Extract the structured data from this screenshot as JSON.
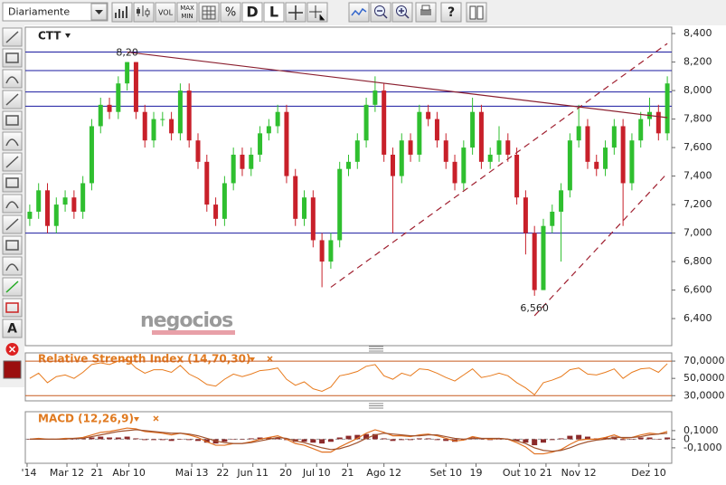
{
  "toolbar": {
    "period": "Diariamente",
    "buttons": [
      "VOL",
      "MAX",
      "MIN",
      "%",
      "D",
      "L",
      "?"
    ],
    "side_label": "A"
  },
  "chart_data": [
    {
      "type": "candlestick",
      "title": "CTT",
      "watermark": "negocios",
      "xlim": [
        -0.5,
        72.5
      ],
      "open": [
        7.1,
        7.15,
        7.3,
        7.05,
        7.2,
        7.25,
        7.15,
        7.35,
        7.75,
        7.9,
        7.85,
        8.05,
        8.2,
        7.85,
        7.65,
        7.8,
        7.8,
        7.7,
        8.0,
        7.65,
        7.5,
        7.2,
        7.1,
        7.35,
        7.55,
        7.45,
        7.55,
        7.7,
        7.75,
        7.85,
        7.4,
        7.1,
        7.25,
        6.95,
        6.8,
        6.95,
        7.45,
        7.5,
        7.65,
        7.9,
        8.0,
        7.55,
        7.4,
        7.65,
        7.55,
        7.85,
        7.8,
        7.65,
        7.5,
        7.35,
        7.6,
        7.85,
        7.5,
        7.55,
        7.65,
        7.55,
        7.25,
        7.0,
        6.6,
        7.05,
        7.15,
        7.3,
        7.65,
        7.75,
        7.5,
        7.45,
        7.6,
        7.75,
        7.35,
        7.65,
        7.8,
        7.85,
        7.7
      ],
      "high": [
        7.2,
        7.35,
        7.35,
        7.25,
        7.3,
        7.3,
        7.4,
        7.8,
        7.95,
        7.95,
        8.1,
        8.2,
        8.2,
        7.9,
        7.85,
        7.85,
        7.85,
        8.05,
        8.05,
        7.7,
        7.55,
        7.25,
        7.4,
        7.6,
        7.6,
        7.6,
        7.75,
        7.8,
        7.9,
        7.9,
        7.45,
        7.3,
        7.3,
        7.0,
        7.0,
        7.5,
        7.55,
        7.7,
        7.95,
        8.1,
        8.05,
        7.6,
        7.7,
        7.7,
        7.9,
        7.9,
        7.85,
        7.7,
        7.55,
        7.65,
        7.95,
        7.9,
        7.6,
        7.75,
        7.7,
        7.6,
        7.3,
        7.05,
        7.1,
        7.2,
        7.35,
        7.7,
        7.9,
        7.8,
        7.55,
        7.65,
        7.8,
        7.8,
        7.7,
        7.85,
        7.95,
        7.9,
        8.1
      ],
      "low": [
        7.05,
        7.1,
        7.0,
        7.0,
        7.15,
        7.1,
        7.1,
        7.3,
        7.7,
        7.8,
        7.8,
        8.0,
        7.8,
        7.6,
        7.6,
        7.75,
        7.65,
        7.65,
        7.6,
        7.45,
        7.15,
        7.05,
        7.05,
        7.3,
        7.4,
        7.4,
        7.5,
        7.65,
        7.7,
        7.35,
        7.05,
        7.05,
        6.9,
        6.62,
        6.75,
        6.9,
        7.4,
        7.45,
        7.6,
        7.85,
        7.5,
        7.0,
        7.35,
        7.5,
        7.5,
        7.75,
        7.6,
        7.45,
        7.3,
        7.3,
        7.55,
        7.45,
        7.45,
        7.5,
        7.5,
        7.2,
        6.85,
        6.56,
        6.6,
        7.0,
        6.8,
        7.25,
        7.6,
        7.45,
        7.4,
        7.4,
        7.55,
        7.05,
        7.3,
        7.6,
        7.75,
        7.65,
        7.65
      ],
      "close": [
        7.15,
        7.3,
        7.05,
        7.2,
        7.25,
        7.15,
        7.35,
        7.75,
        7.9,
        7.85,
        8.05,
        8.2,
        7.85,
        7.65,
        7.8,
        7.8,
        7.7,
        8.0,
        7.65,
        7.5,
        7.2,
        7.1,
        7.35,
        7.55,
        7.45,
        7.55,
        7.7,
        7.75,
        7.85,
        7.4,
        7.1,
        7.25,
        6.95,
        6.8,
        6.95,
        7.45,
        7.5,
        7.65,
        7.9,
        8.0,
        7.55,
        7.4,
        7.65,
        7.55,
        7.85,
        7.8,
        7.65,
        7.5,
        7.35,
        7.6,
        7.85,
        7.5,
        7.55,
        7.65,
        7.55,
        7.25,
        7.0,
        6.6,
        7.05,
        7.15,
        7.3,
        7.65,
        7.75,
        7.5,
        7.45,
        7.6,
        7.75,
        7.35,
        7.65,
        7.8,
        7.85,
        7.7,
        8.05
      ],
      "up_color": "#2fbf2f",
      "down_color": "#c8202a",
      "ylim": [
        6.21,
        8.445
      ],
      "yticks": [
        {
          "value": 6.4,
          "label": "6,400"
        },
        {
          "value": 6.6,
          "label": "6,600"
        },
        {
          "value": 6.8,
          "label": "6,800"
        },
        {
          "value": 7.0,
          "label": "7,000"
        },
        {
          "value": 7.2,
          "label": "7,200"
        },
        {
          "value": 7.4,
          "label": "7,400"
        },
        {
          "value": 7.6,
          "label": "7,600"
        },
        {
          "value": 7.8,
          "label": "7,800"
        },
        {
          "value": 8.0,
          "label": "8,000"
        },
        {
          "value": 8.2,
          "label": "8,200"
        },
        {
          "value": 8.4,
          "label": "8,400"
        }
      ],
      "hlines": {
        "values": [
          8.27,
          8.14,
          7.99,
          7.89,
          7.0
        ],
        "color": "#1a1aa0"
      },
      "trendlines": [
        {
          "points": [
            [
              11,
              8.27
            ],
            [
              72,
              7.81
            ]
          ],
          "color": "#8b2030",
          "dashed": false
        },
        {
          "points": [
            [
              34,
              6.62
            ],
            [
              72,
              8.33
            ]
          ],
          "color": "#a02030",
          "dashed": true
        },
        {
          "points": [
            [
              57,
              6.42
            ],
            [
              72,
              7.42
            ]
          ],
          "color": "#a02030",
          "dashed": true
        }
      ],
      "annotations": [
        {
          "index": 11,
          "value": 8.2,
          "label": "8,20"
        },
        {
          "index": 57,
          "value": 6.56,
          "label": "6,560"
        }
      ]
    },
    {
      "type": "line",
      "title": "Relative Strength Index (14,70,30)",
      "color": "#e87b1e",
      "values": [
        50,
        56,
        45,
        52,
        54,
        50,
        57,
        66,
        68,
        66,
        70,
        72,
        62,
        56,
        60,
        60,
        57,
        65,
        55,
        50,
        43,
        41,
        49,
        55,
        52,
        55,
        59,
        60,
        62,
        49,
        42,
        46,
        38,
        35,
        40,
        53,
        55,
        58,
        64,
        66,
        53,
        49,
        56,
        53,
        61,
        60,
        56,
        51,
        47,
        54,
        61,
        51,
        53,
        56,
        53,
        45,
        39,
        31,
        45,
        48,
        52,
        60,
        62,
        55,
        54,
        57,
        61,
        50,
        57,
        61,
        62,
        57,
        67
      ],
      "ylim": [
        24,
        79.5
      ],
      "yticks": [
        {
          "value": 70,
          "label": "70,0000"
        },
        {
          "value": 50,
          "label": "50,0000"
        },
        {
          "value": 30,
          "label": "30,0000"
        }
      ],
      "bands": [
        70,
        30
      ],
      "band_color": "#c85a1e"
    },
    {
      "type": "macd",
      "title": "MACD (12,26,9)",
      "series": [
        {
          "color": "#e07020",
          "values": [
            0.0,
            0.01,
            0.0,
            0.0,
            0.01,
            0.01,
            0.02,
            0.05,
            0.08,
            0.09,
            0.11,
            0.13,
            0.12,
            0.09,
            0.08,
            0.07,
            0.05,
            0.07,
            0.05,
            0.02,
            -0.03,
            -0.07,
            -0.07,
            -0.05,
            -0.05,
            -0.03,
            0.0,
            0.02,
            0.04,
            0.0,
            -0.05,
            -0.07,
            -0.11,
            -0.15,
            -0.15,
            -0.09,
            -0.04,
            0.01,
            0.07,
            0.11,
            0.08,
            0.04,
            0.04,
            0.03,
            0.05,
            0.06,
            0.04,
            0.01,
            -0.02,
            -0.01,
            0.03,
            0.01,
            0.0,
            0.01,
            0.0,
            -0.04,
            -0.09,
            -0.17,
            -0.17,
            -0.15,
            -0.12,
            -0.06,
            -0.01,
            0.0,
            0.0,
            0.02,
            0.05,
            0.01,
            0.02,
            0.05,
            0.07,
            0.06,
            0.09
          ]
        },
        {
          "color": "#a0522d",
          "values": [
            0.0,
            0.0,
            0.0,
            0.0,
            0.0,
            0.01,
            0.01,
            0.03,
            0.05,
            0.07,
            0.09,
            0.1,
            0.11,
            0.1,
            0.09,
            0.08,
            0.07,
            0.07,
            0.06,
            0.04,
            0.01,
            -0.02,
            -0.04,
            -0.05,
            -0.05,
            -0.04,
            -0.02,
            0.0,
            0.02,
            0.01,
            -0.02,
            -0.04,
            -0.07,
            -0.1,
            -0.12,
            -0.11,
            -0.08,
            -0.04,
            0.01,
            0.05,
            0.07,
            0.06,
            0.05,
            0.04,
            0.04,
            0.05,
            0.05,
            0.03,
            0.01,
            0.0,
            0.01,
            0.01,
            0.01,
            0.01,
            0.0,
            -0.02,
            -0.05,
            -0.1,
            -0.13,
            -0.14,
            -0.13,
            -0.1,
            -0.06,
            -0.03,
            -0.01,
            0.0,
            0.02,
            0.02,
            0.02,
            0.03,
            0.05,
            0.06,
            0.07
          ]
        }
      ],
      "histogram": {
        "color": "#8b2a2a",
        "values": [
          0,
          0.01,
          0,
          0,
          0.01,
          0,
          0.01,
          0.02,
          0.03,
          0.02,
          0.02,
          0.03,
          0.01,
          -0.01,
          -0.01,
          -0.01,
          -0.02,
          0,
          -0.01,
          -0.02,
          -0.04,
          -0.05,
          -0.03,
          0,
          0,
          0.01,
          0.02,
          0.02,
          0.02,
          -0.01,
          -0.03,
          -0.03,
          -0.04,
          -0.05,
          -0.03,
          0.02,
          0.04,
          0.05,
          0.06,
          0.06,
          0.01,
          -0.02,
          -0.01,
          -0.01,
          0.01,
          0.01,
          -0.01,
          -0.02,
          -0.03,
          -0.01,
          0.02,
          0,
          -0.01,
          0,
          0,
          -0.02,
          -0.04,
          -0.07,
          -0.04,
          -0.01,
          0.01,
          0.04,
          0.05,
          0.03,
          0.01,
          0.02,
          0.03,
          -0.01,
          0,
          0.02,
          0.02,
          0,
          0.02
        ]
      },
      "ylim": [
        -0.28,
        0.32
      ],
      "yticks": [
        {
          "value": 0.1,
          "label": "0,1000"
        },
        0,
        {
          "value": -0.1,
          "label": "-0,1000"
        }
      ],
      "xticks": [
        {
          "value": -0.3,
          "label": "'14"
        },
        {
          "value": 4.2,
          "label": "Mar 12"
        },
        {
          "value": 7.6,
          "label": "21"
        },
        {
          "value": 11.2,
          "label": "Abr 10"
        },
        {
          "value": 18.3,
          "label": "Mai 13"
        },
        {
          "value": 21.8,
          "label": "22"
        },
        {
          "value": 25.2,
          "label": "Jun 11"
        },
        {
          "value": 28.9,
          "label": "20"
        },
        {
          "value": 32.4,
          "label": "Jul 10"
        },
        {
          "value": 35.9,
          "label": "21"
        },
        {
          "value": 40,
          "label": "Ago 12"
        },
        {
          "value": 47,
          "label": "Set 10"
        },
        {
          "value": 50.4,
          "label": "19"
        },
        {
          "value": 55.3,
          "label": "Out 10"
        },
        {
          "value": 58.3,
          "label": "21"
        },
        {
          "value": 62,
          "label": "Nov 12"
        },
        {
          "value": 69.9,
          "label": "Dez 10"
        }
      ]
    }
  ]
}
